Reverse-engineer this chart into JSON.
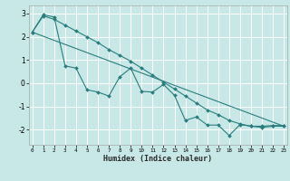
{
  "title": "",
  "xlabel": "Humidex (Indice chaleur)",
  "background_color": "#c8e8e8",
  "grid_color": "#ffffff",
  "line_color": "#2a7d7d",
  "x_ticks": [
    0,
    1,
    2,
    3,
    4,
    5,
    6,
    7,
    8,
    9,
    10,
    11,
    12,
    13,
    14,
    15,
    16,
    17,
    18,
    19,
    20,
    21,
    22,
    23
  ],
  "y_ticks": [
    -2,
    -1,
    0,
    1,
    2,
    3
  ],
  "xlim": [
    -0.3,
    23.3
  ],
  "ylim": [
    -2.65,
    3.35
  ],
  "line1_x": [
    0,
    1,
    2,
    3,
    4,
    5,
    6,
    7,
    8,
    9,
    10,
    11,
    12,
    13,
    14,
    15,
    16,
    17,
    18,
    19,
    20,
    21,
    22,
    23
  ],
  "line1_y": [
    2.2,
    2.95,
    2.85,
    0.75,
    0.65,
    -0.28,
    -0.38,
    -0.55,
    0.28,
    0.65,
    -0.35,
    -0.38,
    -0.05,
    -0.52,
    -1.6,
    -1.45,
    -1.8,
    -1.8,
    -2.25,
    -1.78,
    -1.85,
    -1.85,
    -1.82,
    -1.82
  ],
  "line2_x": [
    0,
    1,
    2,
    3,
    4,
    5,
    6,
    7,
    8,
    9,
    10,
    11,
    12,
    13,
    14,
    15,
    16,
    17,
    18,
    19,
    20,
    21,
    22,
    23
  ],
  "line2_y": [
    2.2,
    2.9,
    2.75,
    2.5,
    2.25,
    2.0,
    1.75,
    1.45,
    1.2,
    0.95,
    0.65,
    0.35,
    0.05,
    -0.25,
    -0.55,
    -0.85,
    -1.15,
    -1.35,
    -1.6,
    -1.75,
    -1.85,
    -1.9,
    -1.85,
    -1.85
  ],
  "line3_x": [
    0,
    23
  ],
  "line3_y": [
    2.2,
    -1.85
  ]
}
